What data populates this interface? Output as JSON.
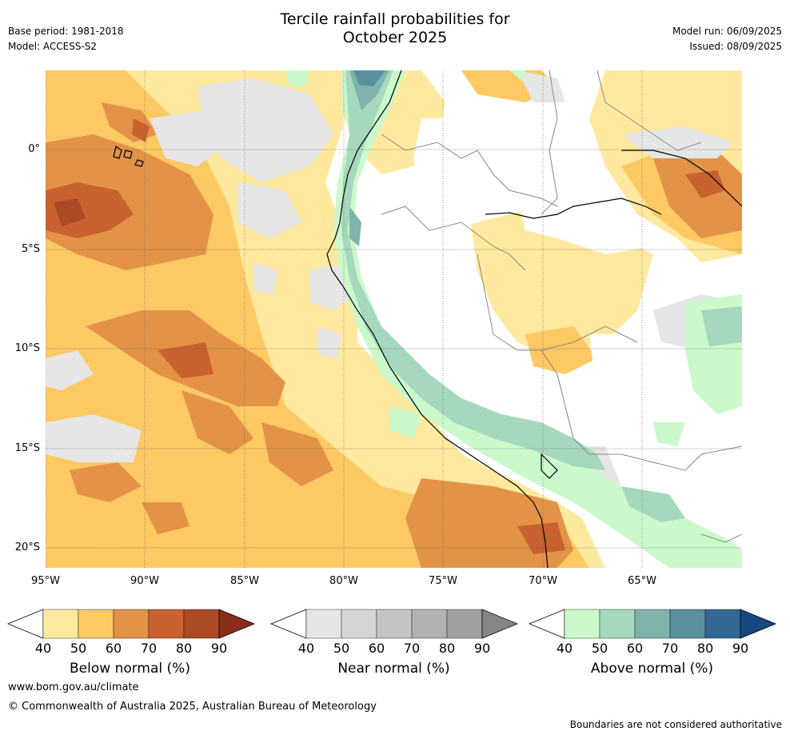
{
  "header": {
    "title_line1": "Tercile rainfall probabilities for",
    "title_line2": "October 2025",
    "base_period": "Base period: 1981-2018",
    "model": "Model: ACCESS-S2",
    "model_run": "Model run: 06/09/2025",
    "issued": "Issued: 08/09/2025"
  },
  "map": {
    "x_ticks": [
      "95°W",
      "90°W",
      "85°W",
      "80°W",
      "75°W",
      "70°W",
      "65°W"
    ],
    "y_ticks": [
      "0°",
      "5°S",
      "10°S",
      "15°S",
      "20°S"
    ],
    "extent": {
      "lon_min": -95,
      "lon_max": -60,
      "lat_min": -21,
      "lat_max": 4
    }
  },
  "legends": [
    {
      "label": "Below normal (%)",
      "ticks": [
        "40",
        "50",
        "60",
        "70",
        "80",
        "90"
      ],
      "colors": [
        "#fee99f",
        "#fdc963",
        "#e29347",
        "#c9622f",
        "#ac4a25",
        "#8a2e1a"
      ]
    },
    {
      "label": "Near normal (%)",
      "ticks": [
        "40",
        "50",
        "60",
        "70",
        "80",
        "90"
      ],
      "colors": [
        "#e6e6e6",
        "#d5d5d5",
        "#c4c4c4",
        "#b2b2b2",
        "#a0a0a0",
        "#858585"
      ]
    },
    {
      "label": "Above normal (%)",
      "ticks": [
        "40",
        "50",
        "60",
        "70",
        "80",
        "90"
      ],
      "colors": [
        "#cbf9cc",
        "#a5d8bc",
        "#7fb3ab",
        "#5a8f9d",
        "#336796",
        "#17487f"
      ]
    }
  ],
  "footer": {
    "website": "www.bom.gov.au/climate",
    "copyright": "© Commonwealth of Australia 2025, Australian Bureau of Meteorology",
    "disclaimer": "Boundaries are not considered authoritative"
  }
}
